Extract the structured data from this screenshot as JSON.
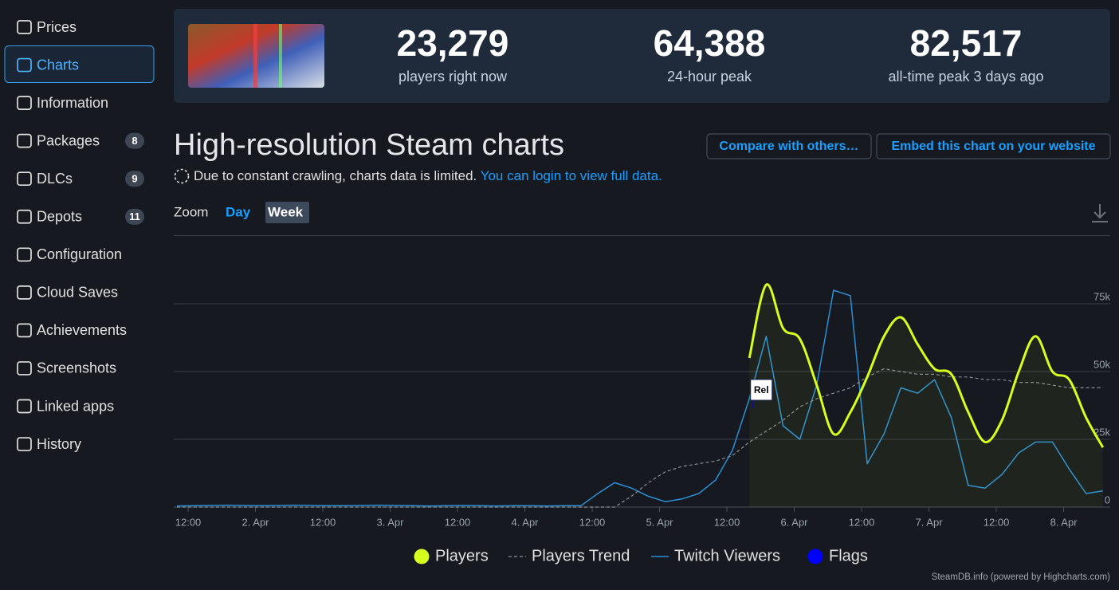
{
  "sidebar": {
    "items": [
      {
        "label": "Prices"
      },
      {
        "label": "Charts",
        "active": true
      },
      {
        "label": "Information"
      },
      {
        "label": "Packages",
        "badge": 8
      },
      {
        "label": "DLCs",
        "badge": 9
      },
      {
        "label": "Depots",
        "badge": 11
      },
      {
        "label": "Configuration"
      },
      {
        "label": "Cloud Saves"
      },
      {
        "label": "Achievements"
      },
      {
        "label": "Screenshots"
      },
      {
        "label": "Linked apps"
      },
      {
        "label": "History"
      }
    ]
  },
  "stats": [
    {
      "value": "23,279",
      "label": "players right now"
    },
    {
      "value": "64,388",
      "label": "24-hour peak"
    },
    {
      "value": "82,517",
      "label": "all-time peak 3 days ago"
    }
  ],
  "header": {
    "title": "High-resolution Steam charts",
    "buttons": [
      "Compare with others…",
      "Embed this chart on your website"
    ],
    "notice": "Due to constant crawling, charts data is limited.",
    "notice_link": "You can login to view full data.",
    "zoom_label": "Zoom",
    "zoom_options": [
      "Day",
      "Week"
    ],
    "zoom_active": "Week"
  },
  "chart_data": {
    "type": "line",
    "x": [
      10,
      13,
      16,
      19,
      22,
      25,
      28,
      31,
      34,
      37,
      40,
      43,
      46,
      49,
      52,
      55,
      58,
      61,
      64,
      67,
      70,
      73,
      76,
      79,
      82,
      85,
      88,
      91,
      94,
      97,
      100,
      103,
      106,
      109,
      112,
      115,
      118,
      121,
      124,
      127,
      130,
      133,
      136,
      139,
      142,
      145,
      148,
      151,
      154,
      157,
      160,
      163,
      166,
      169,
      172,
      175
    ],
    "xlim": [
      9.44,
      176.3
    ],
    "xticks": [
      {
        "value": 12,
        "label": "12:00"
      },
      {
        "value": 24,
        "label": "2. Apr"
      },
      {
        "value": 36,
        "label": "12:00"
      },
      {
        "value": 48,
        "label": "3. Apr"
      },
      {
        "value": 60,
        "label": "12:00"
      },
      {
        "value": 72,
        "label": "4. Apr"
      },
      {
        "value": 84,
        "label": "12:00"
      },
      {
        "value": 96,
        "label": "5. Apr"
      },
      {
        "value": 108,
        "label": "12:00"
      },
      {
        "value": 120,
        "label": "6. Apr"
      },
      {
        "value": 132,
        "label": "12:00"
      },
      {
        "value": 144,
        "label": "7. Apr"
      },
      {
        "value": 156,
        "label": "12:00"
      },
      {
        "value": 168,
        "label": "8. Apr"
      }
    ],
    "ylim": [
      0,
      100000
    ],
    "yticks": [
      0,
      {
        "value": 25000,
        "label": "25k"
      },
      {
        "value": 50000,
        "label": "50k"
      },
      {
        "value": 75000,
        "label": "75k"
      }
    ],
    "grid": true,
    "series": [
      {
        "name": "Players",
        "color": "#d4ff1f",
        "area": true,
        "smooth": true,
        "legend_symbol": "circle",
        "values": [
          null,
          null,
          null,
          null,
          null,
          null,
          null,
          null,
          null,
          null,
          null,
          null,
          null,
          null,
          null,
          null,
          null,
          null,
          null,
          null,
          null,
          null,
          null,
          null,
          null,
          null,
          null,
          null,
          null,
          null,
          null,
          null,
          null,
          null,
          55000,
          82000,
          66000,
          62000,
          45000,
          27000,
          35000,
          48000,
          63000,
          70000,
          60000,
          51000,
          49000,
          35000,
          24000,
          32000,
          50000,
          63000,
          50000,
          47000,
          33000,
          22000
        ]
      },
      {
        "name": "Players Trend",
        "color": "#8a8f96",
        "dashed": true,
        "legend_symbol": "dashed-line",
        "values": [
          0,
          0,
          0,
          0,
          0,
          0,
          0,
          0,
          0,
          0,
          0,
          0,
          0,
          0,
          0,
          0,
          0,
          0,
          0,
          0,
          0,
          0,
          0,
          0,
          0,
          0,
          0,
          4000,
          9000,
          13000,
          15000,
          16000,
          17000,
          19000,
          24000,
          28000,
          32000,
          37000,
          40000,
          42000,
          44000,
          48000,
          51000,
          50000,
          49000,
          49000,
          48000,
          48000,
          47000,
          47000,
          46000,
          46000,
          45000,
          44000,
          44000,
          44000
        ]
      },
      {
        "name": "Twitch Viewers",
        "color": "#2b8fd6",
        "legend_symbol": "line",
        "values": [
          400,
          500,
          600,
          700,
          600,
          500,
          600,
          700,
          600,
          500,
          500,
          600,
          700,
          600,
          500,
          400,
          500,
          600,
          500,
          400,
          500,
          500,
          400,
          500,
          500,
          5000,
          9000,
          7000,
          4000,
          2000,
          3000,
          5000,
          10000,
          21000,
          40000,
          63000,
          30000,
          25000,
          45000,
          80000,
          78000,
          16000,
          27000,
          44000,
          42000,
          47000,
          33000,
          8000,
          7000,
          12000,
          20000,
          24000,
          24000,
          14000,
          5000,
          6000
        ]
      }
    ],
    "flags": {
      "name": "Flags",
      "color": "#0000ff",
      "points": [
        {
          "x": 112.5,
          "title": "Rel"
        }
      ]
    },
    "credits": "SteamDB.info (powered by Highcharts.com)"
  }
}
